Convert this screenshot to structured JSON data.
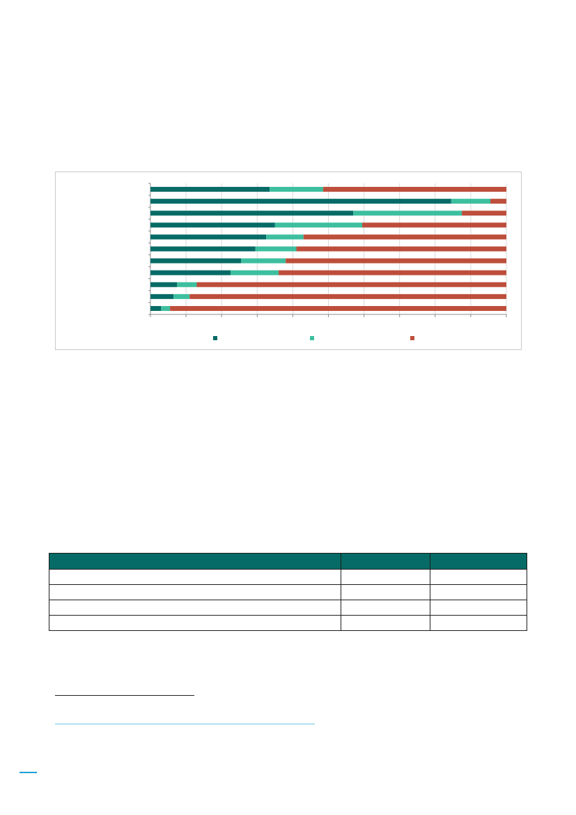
{
  "colors": {
    "accent_dark": "#066b66",
    "accent_light": "#3dbf9f",
    "accent_red": "#bd4e3b",
    "table_header": "#066b66",
    "link_line": "#6fc3e6",
    "page_marker": "#1aa0d8"
  },
  "chart_data": {
    "type": "bar",
    "orientation": "horizontal",
    "stacked": true,
    "percent_stacked": true,
    "xlim": [
      0,
      100
    ],
    "grid": true,
    "legend": "bottom",
    "categories": [
      "",
      "",
      "",
      "",
      "",
      "",
      "",
      "",
      "",
      "",
      ""
    ],
    "series": [
      {
        "color": "#066b66",
        "values": [
          33.5,
          84.5,
          57,
          35,
          32.5,
          29.5,
          25.5,
          22.5,
          7.5,
          6.5,
          3
        ]
      },
      {
        "color": "#3dbf9f",
        "values": [
          15,
          11,
          30.5,
          24.5,
          10.5,
          11.5,
          12.5,
          13.5,
          5.5,
          4.5,
          2.5
        ]
      },
      {
        "color": "#bd4e3b",
        "values": [
          51.5,
          4.5,
          12.5,
          40.5,
          57,
          59,
          62,
          64,
          87,
          89,
          94.5
        ]
      }
    ]
  },
  "table": {
    "header": [
      "",
      "",
      ""
    ],
    "rows": [
      [
        "",
        "",
        ""
      ],
      [
        "",
        "",
        ""
      ],
      [
        "",
        "",
        ""
      ],
      [
        "",
        "",
        ""
      ]
    ]
  }
}
